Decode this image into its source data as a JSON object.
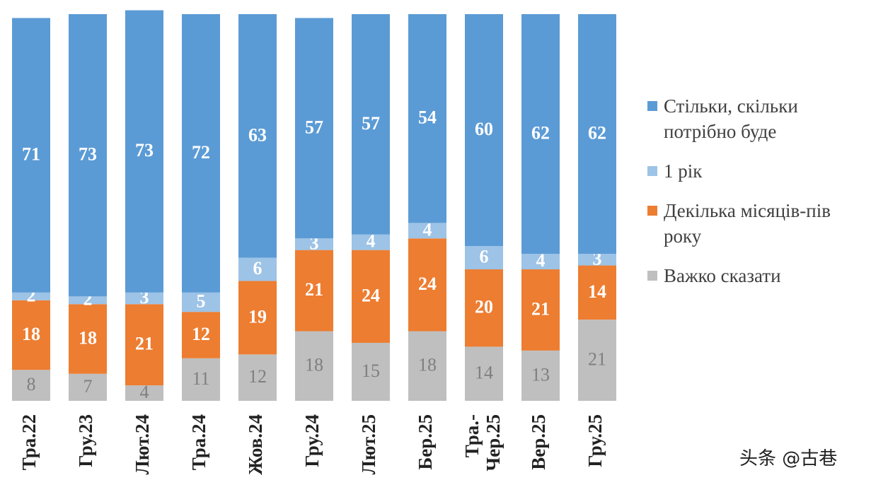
{
  "chart_data": {
    "type": "stacked_bar",
    "categories": [
      "Тра.22",
      "Гру.23",
      "Лют.24",
      "Тра.24",
      "Жов.24",
      "Гру.24",
      "Лют.25",
      "Бер.25",
      "Тра.-Чер.25",
      "Вер.25",
      "Гру.25"
    ],
    "series": [
      {
        "name": "Важко сказати",
        "color": "#bfbfbf",
        "values": [
          8,
          7,
          4,
          11,
          12,
          18,
          15,
          18,
          14,
          13,
          21
        ]
      },
      {
        "name": "Декілька місяців-пів року",
        "color": "#ed7d31",
        "values": [
          18,
          18,
          21,
          12,
          19,
          21,
          24,
          24,
          20,
          21,
          14
        ]
      },
      {
        "name": "1 рік",
        "color": "#9dc3e6",
        "values": [
          2,
          2,
          3,
          5,
          6,
          3,
          4,
          4,
          6,
          4,
          3
        ]
      },
      {
        "name": "Стільки, скільки потрібно буде",
        "color": "#5b9bd5",
        "values": [
          71,
          73,
          73,
          72,
          63,
          57,
          57,
          54,
          60,
          62,
          62
        ]
      }
    ],
    "ylim": [
      0,
      100
    ],
    "watermark": "头条 @古巷"
  }
}
